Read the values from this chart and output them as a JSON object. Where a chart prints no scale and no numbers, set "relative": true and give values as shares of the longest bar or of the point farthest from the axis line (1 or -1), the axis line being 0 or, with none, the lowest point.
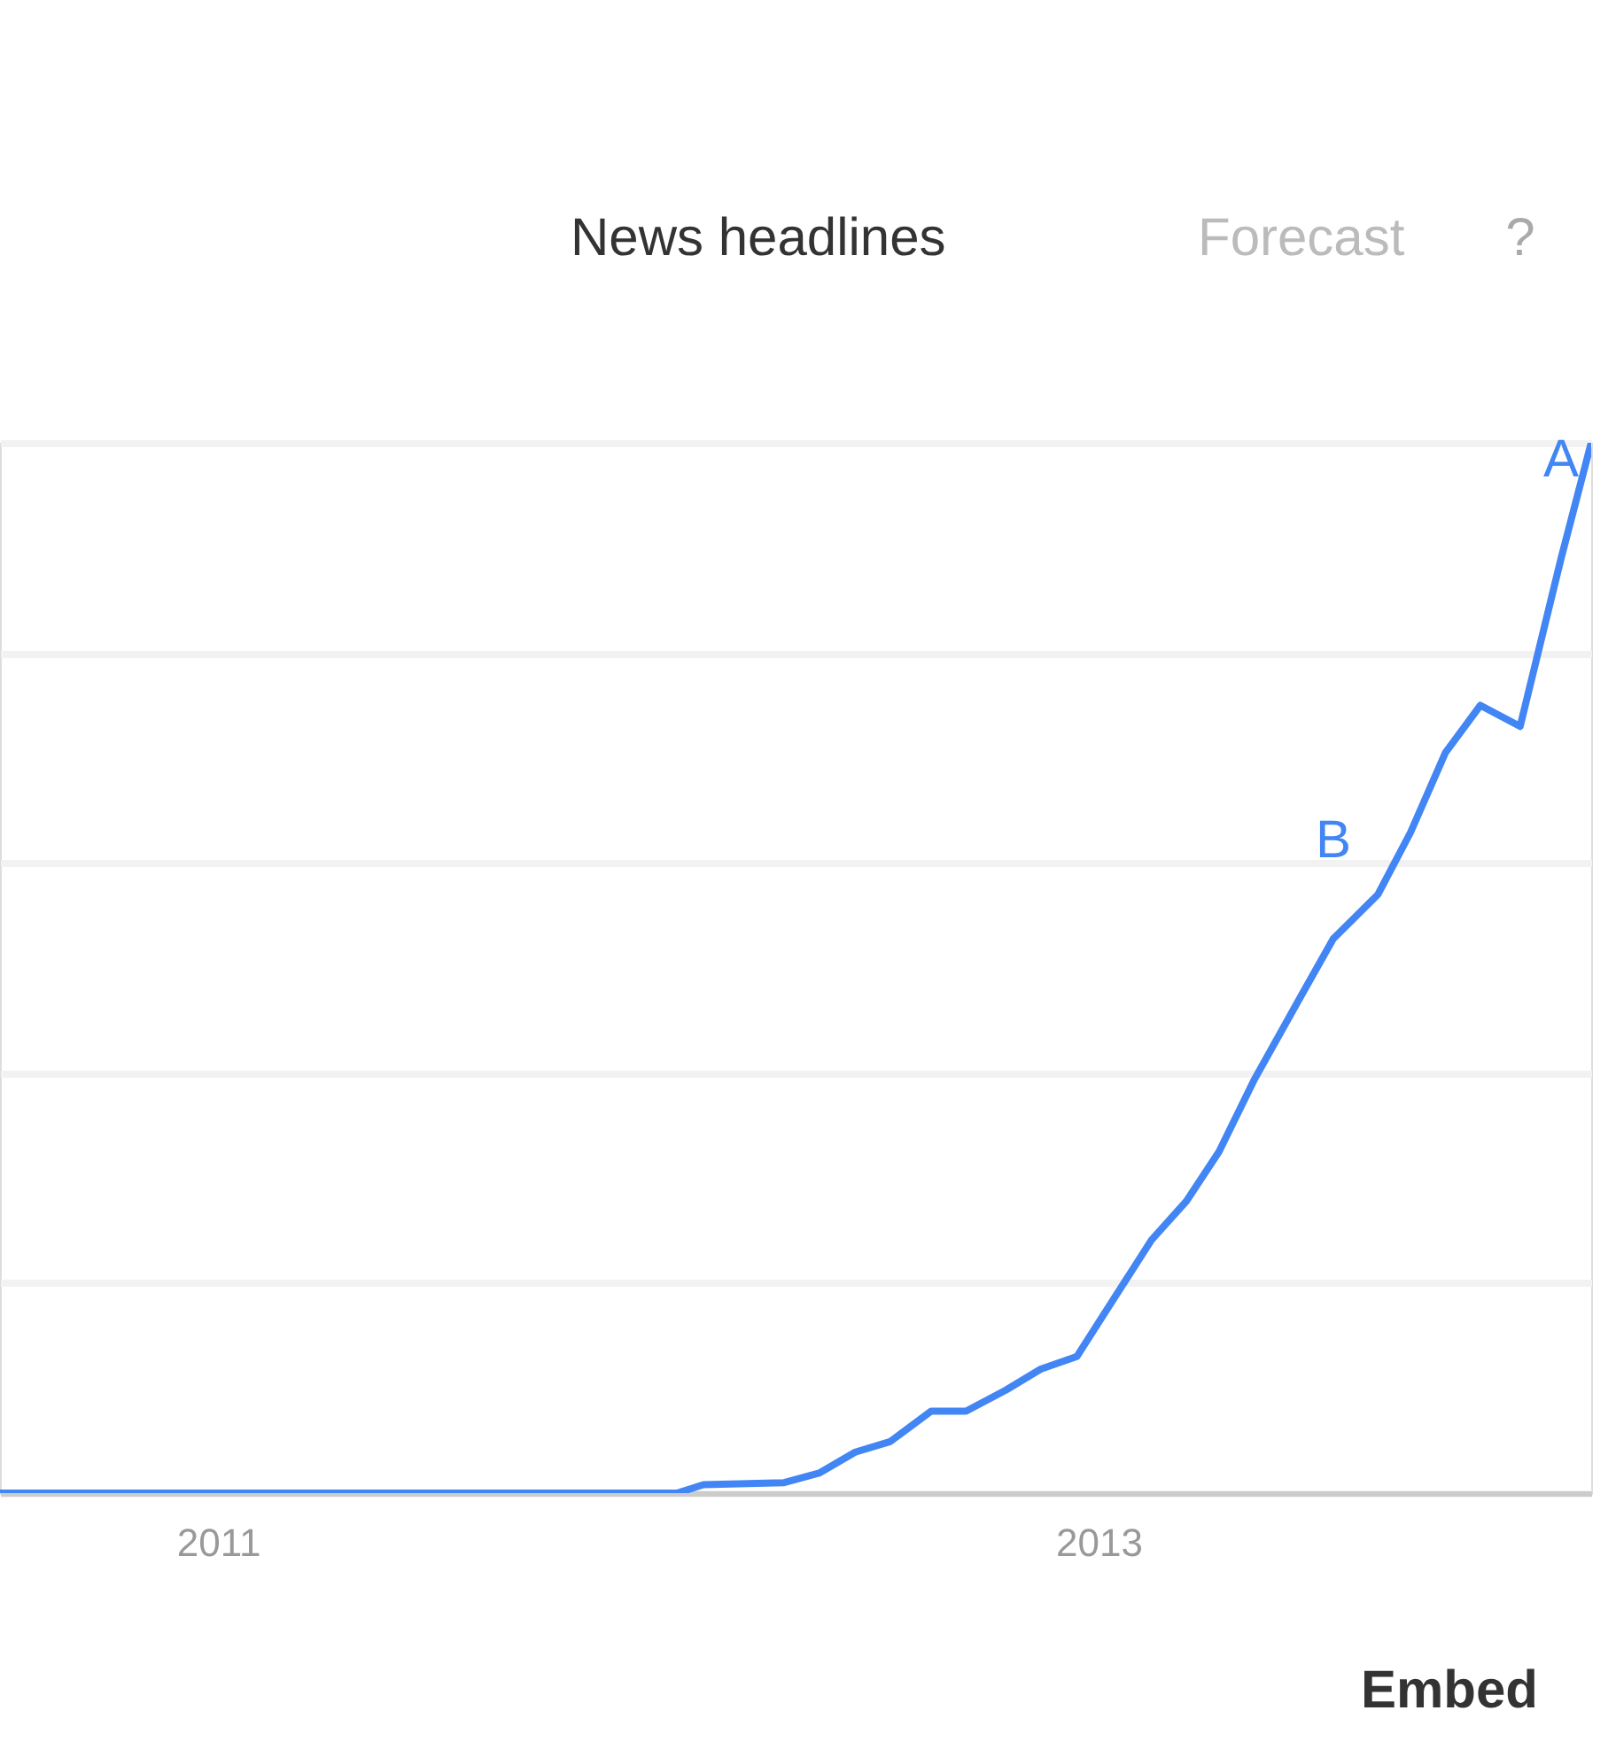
{
  "chart_data": {
    "type": "line",
    "relative": true,
    "x": [
      "2010-07-04",
      "2012-01-17",
      "2012-02-08",
      "2012-04-15",
      "2012-05-14",
      "2012-06-13",
      "2012-07-12",
      "2012-08-15",
      "2012-09-13",
      "2012-10-16",
      "2012-11-14",
      "2012-12-14",
      "2013-01-12",
      "2013-02-14",
      "2013-03-15",
      "2013-04-11",
      "2013-05-10",
      "2013-06-16",
      "2013-07-15",
      "2013-08-21",
      "2013-09-17",
      "2013-10-16",
      "2013-11-14",
      "2013-12-17",
      "2014-01-20",
      "2014-02-14"
    ],
    "series": [
      {
        "color": "#4285f4",
        "values": [
          0,
          0,
          0.008,
          0.01,
          0.019,
          0.039,
          0.049,
          0.078,
          0.078,
          0.098,
          0.118,
          0.13,
          0.182,
          0.241,
          0.278,
          0.325,
          0.393,
          0.469,
          0.528,
          0.57,
          0.629,
          0.705,
          0.75,
          0.73,
          0.89,
          1
        ]
      }
    ],
    "xlim": [
      "2010-07-04",
      "2014-02-14"
    ],
    "xticks": [
      "2011",
      "2013"
    ],
    "grid": "y",
    "annotations": [
      {
        "text": "B",
        "x": "2013-07-15",
        "y": 0.528
      },
      {
        "text": "A",
        "x": "2014-01-20",
        "y": 0.89
      },
      "News headlines",
      "Forecast",
      "?",
      "Embed"
    ]
  }
}
